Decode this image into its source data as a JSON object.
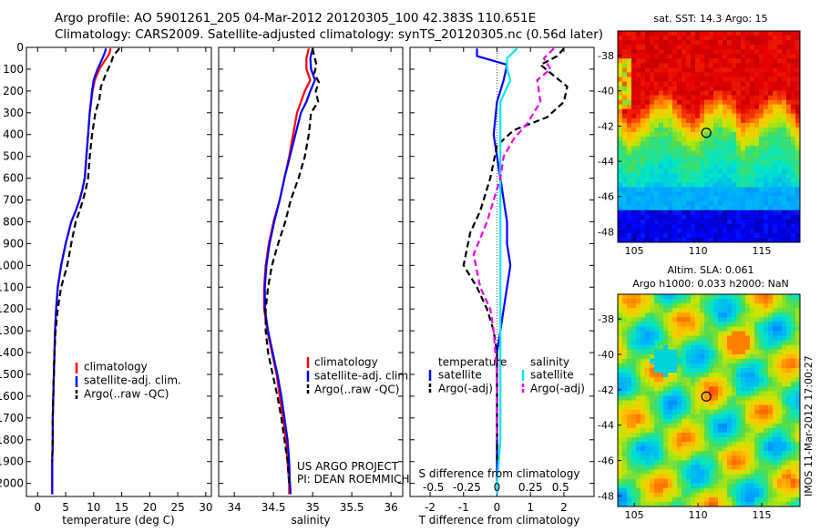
{
  "title_line1": "Argo profile: AO 5901261_205 04-Mar-2012 20120305_100 42.383S 110.651E",
  "title_line2": "Climatology: CARS2009. Satellite-adjusted climatology: synTS_20120305.nc (0.56d later)",
  "colors": {
    "clim": "#ff0000",
    "sat": "#0000ff",
    "argo": "#000000",
    "sat_s": "#00e5ff",
    "argo_s": "#ee00ee"
  },
  "project_line1": "US ARGO PROJECT",
  "project_line2": "PI: DEAN ROEMMICH",
  "stamp": "IMOS 11-Mar-2012 17:00:27",
  "chart_data": [
    {
      "type": "line",
      "name": "temperature",
      "xlabel": "temperature (deg C)",
      "xlim": [
        -2,
        31
      ],
      "ylim": [
        2060,
        0
      ],
      "xticks": [
        0,
        5,
        10,
        15,
        20,
        25,
        30
      ],
      "yticks": [
        0,
        100,
        200,
        300,
        400,
        500,
        600,
        700,
        800,
        900,
        1000,
        1100,
        1200,
        1300,
        1400,
        1500,
        1600,
        1700,
        1800,
        1900,
        2000
      ],
      "legend": [
        "climatology",
        "satellite-adj. clim.",
        "Argo(..raw -QC)"
      ],
      "series": [
        {
          "name": "climatology",
          "style": "solid",
          "color": "#ff0000",
          "x": [
            13.0,
            12.8,
            12.0,
            11.0,
            10.2,
            9.8,
            9.3,
            9.0,
            8.7,
            8.4,
            8.0,
            7.5,
            6.8,
            6.0,
            5.0,
            4.2,
            3.6,
            3.3,
            3.1,
            3.0,
            2.9,
            2.8,
            2.7,
            2.7,
            2.6,
            2.6
          ],
          "y": [
            5,
            30,
            60,
            100,
            150,
            200,
            300,
            400,
            500,
            600,
            650,
            700,
            750,
            800,
            900,
            1000,
            1100,
            1200,
            1300,
            1400,
            1500,
            1600,
            1700,
            1800,
            1900,
            2050
          ]
        },
        {
          "name": "satellite-adj. clim.",
          "style": "solid",
          "color": "#0000ff",
          "x": [
            12.2,
            11.9,
            11.4,
            10.7,
            10.0,
            9.7,
            9.3,
            9.0,
            8.7,
            8.4,
            8.0,
            7.5,
            6.8,
            6.0,
            5.0,
            4.2,
            3.6,
            3.3,
            3.1,
            3.0,
            2.9,
            2.8,
            2.7,
            2.7,
            2.6,
            2.6
          ],
          "y": [
            5,
            30,
            60,
            100,
            150,
            200,
            300,
            400,
            500,
            600,
            650,
            700,
            750,
            800,
            900,
            1000,
            1100,
            1200,
            1300,
            1400,
            1500,
            1600,
            1700,
            1800,
            1900,
            2050
          ]
        },
        {
          "name": "Argo(..raw -QC)",
          "style": "dashed",
          "color": "#000000",
          "x": [
            14.6,
            14.1,
            13.5,
            13.1,
            12.2,
            11.3,
            11.0,
            10.3,
            9.7,
            9.3,
            9.0,
            8.6,
            8.1,
            7.5,
            6.8,
            6.0,
            5.3,
            4.2,
            3.6,
            3.2,
            3.0,
            2.9,
            2.8,
            2.7,
            2.7,
            2.6
          ],
          "y": [
            5,
            20,
            40,
            70,
            120,
            180,
            240,
            300,
            400,
            500,
            600,
            650,
            700,
            750,
            800,
            900,
            1000,
            1100,
            1200,
            1300,
            1400,
            1500,
            1600,
            1700,
            1800,
            1900
          ]
        }
      ]
    },
    {
      "type": "line",
      "name": "salinity",
      "xlabel": "salinity",
      "xlim": [
        33.8,
        36.15
      ],
      "ylim": [
        2060,
        0
      ],
      "xticks": [
        34,
        34.5,
        35,
        35.5,
        36
      ],
      "xtick_labels": [
        "34",
        "34.5",
        "35",
        "35.5",
        "36"
      ],
      "legend": [
        "climatology",
        "satellite-adj. clim.",
        "Argo(..raw -QC)"
      ],
      "series": [
        {
          "name": "climatology",
          "style": "solid",
          "color": "#ff0000",
          "x": [
            34.95,
            34.92,
            34.92,
            34.97,
            34.9,
            34.85,
            34.8,
            34.75,
            34.7,
            34.64,
            34.58,
            34.5,
            34.44,
            34.4,
            34.38,
            34.38,
            34.42,
            34.48,
            34.54,
            34.58,
            34.62,
            34.66,
            34.68,
            34.7,
            34.7
          ],
          "y": [
            5,
            50,
            100,
            150,
            200,
            250,
            300,
            400,
            500,
            600,
            700,
            800,
            900,
            1000,
            1100,
            1200,
            1300,
            1400,
            1500,
            1600,
            1700,
            1800,
            1900,
            2000,
            2050
          ]
        },
        {
          "name": "satellite-adj. clim.",
          "style": "solid",
          "color": "#0000ff",
          "x": [
            35.0,
            34.97,
            34.98,
            35.03,
            34.97,
            34.92,
            34.85,
            34.78,
            34.71,
            34.64,
            34.58,
            34.51,
            34.45,
            34.41,
            34.39,
            34.39,
            34.43,
            34.49,
            34.55,
            34.6,
            34.64,
            34.68,
            34.7,
            34.71,
            34.72
          ],
          "y": [
            5,
            50,
            100,
            150,
            200,
            250,
            300,
            400,
            500,
            600,
            700,
            800,
            900,
            1000,
            1100,
            1200,
            1300,
            1400,
            1500,
            1600,
            1700,
            1800,
            1900,
            2000,
            2050
          ]
        },
        {
          "name": "Argo(..raw -QC)",
          "style": "dashed",
          "color": "#000000",
          "x": [
            35.0,
            35.02,
            35.05,
            35.02,
            35.08,
            35.04,
            35.07,
            34.98,
            34.95,
            34.9,
            34.82,
            34.72,
            34.65,
            34.56,
            34.48,
            34.43,
            34.4,
            34.4,
            34.43,
            34.49,
            34.55,
            34.6,
            34.64,
            34.68,
            34.7
          ],
          "y": [
            5,
            40,
            80,
            120,
            160,
            200,
            250,
            300,
            400,
            500,
            600,
            700,
            800,
            900,
            1000,
            1100,
            1200,
            1300,
            1400,
            1500,
            1600,
            1700,
            1800,
            1900,
            2000
          ]
        }
      ]
    },
    {
      "type": "line",
      "name": "differences",
      "xlabel": "T difference from climatology",
      "xlabel_top": "S difference from climatology",
      "xlim": [
        -2.6,
        2.9
      ],
      "ylim": [
        2060,
        0
      ],
      "xticks": [
        -2,
        -1,
        0,
        1,
        2
      ],
      "s_ticks": [
        "-0.5",
        "-0.25",
        "0",
        "0.25",
        "0.5"
      ],
      "s_tick_x": [
        -1.9,
        -0.9,
        0.0,
        1.0,
        1.9
      ],
      "legend_left_title": "temperature",
      "legend_right_title": "salinity",
      "legend": [
        "satellite",
        "Argo(-adj)",
        "satellite",
        "Argo(-adj)"
      ],
      "series": [
        {
          "name": "satellite",
          "color": "#0000ff",
          "style": "solid",
          "x": [
            -0.6,
            -0.6,
            0.3,
            0.2,
            0.0,
            -0.1,
            0.0,
            0.1,
            0.2,
            0.3,
            0.3,
            0.4,
            0.3,
            0.2,
            0.1,
            0.0,
            0.0,
            0.0,
            0.0,
            0.0
          ],
          "y": [
            5,
            40,
            80,
            150,
            250,
            400,
            500,
            600,
            700,
            800,
            900,
            1000,
            1100,
            1200,
            1300,
            1400,
            1500,
            1700,
            1900,
            2050
          ]
        },
        {
          "name": "Argo(-adj)",
          "color": "#000000",
          "style": "dashed",
          "x": [
            2.0,
            1.8,
            1.3,
            2.1,
            2.0,
            1.5,
            0.5,
            0.0,
            -0.2,
            -0.5,
            -0.8,
            -1.0,
            -0.6,
            -0.3,
            -0.1,
            0.0,
            0.0,
            0.0
          ],
          "y": [
            5,
            40,
            80,
            180,
            250,
            320,
            380,
            450,
            600,
            750,
            850,
            1000,
            1100,
            1200,
            1300,
            1400,
            1600,
            1900
          ]
        },
        {
          "name": "satellite",
          "color": "#00e5ff",
          "style": "solid",
          "x": [
            0.6,
            0.3,
            0.3,
            0.4,
            0.1,
            0.1,
            0.1,
            0.1,
            0.1,
            0.1,
            0.1,
            0.1,
            0.1,
            0.1,
            0.0,
            0.0
          ],
          "y": [
            5,
            50,
            100,
            150,
            250,
            350,
            450,
            600,
            800,
            1000,
            1200,
            1400,
            1600,
            1800,
            2000,
            2050
          ]
        },
        {
          "name": "Argo(-adj)",
          "color": "#ee00ee",
          "style": "dashed",
          "x": [
            1.7,
            1.4,
            1.6,
            1.2,
            1.3,
            0.9,
            0.5,
            0.2,
            0.1,
            -0.3,
            -0.7,
            -0.5,
            -0.2,
            -0.1,
            0.0,
            0.0
          ],
          "y": [
            5,
            50,
            100,
            150,
            250,
            350,
            420,
            500,
            600,
            800,
            950,
            1100,
            1200,
            1300,
            1500,
            1800
          ]
        }
      ]
    },
    {
      "type": "heatmap",
      "name": "sst-map",
      "title": "sat. SST: 14.3 Argo: 15",
      "xticks": [
        "105",
        "110",
        "115"
      ],
      "yticks": [
        "-38",
        "-40",
        "-42",
        "-44",
        "-46",
        "-48"
      ],
      "marker": {
        "lon": 110.65,
        "lat": -42.38
      }
    },
    {
      "type": "heatmap",
      "name": "sla-map",
      "title_line1": "Altim. SLA: 0.061",
      "title_line2": "Argo h1000: 0.033 h2000: NaN",
      "xticks": [
        "105",
        "110",
        "115"
      ],
      "yticks": [
        "-38",
        "-40",
        "-42",
        "-44",
        "-46",
        "-48"
      ],
      "marker": {
        "lon": 110.65,
        "lat": -42.38
      }
    }
  ]
}
